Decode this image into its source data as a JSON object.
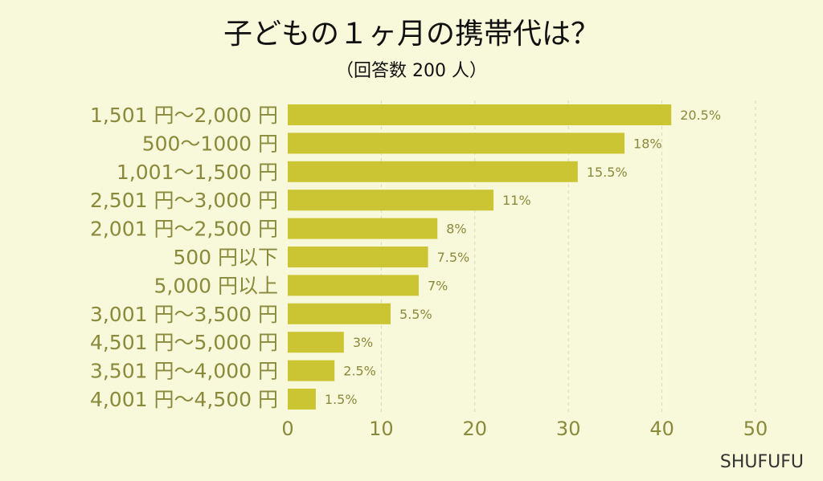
{
  "chart_data": {
    "type": "bar",
    "orientation": "horizontal",
    "title": "子どもの１ヶ月の携帯代は？",
    "subtitle": "（回答数 200 人）",
    "categories": [
      "1,501 円～2,000 円",
      "500～1000 円",
      "1,001～1,500 円",
      "2,501 円～3,000 円",
      "2,001 円～2,500 円",
      "500 円以下",
      "5,000 円以上",
      "3,001 円～3,500 円",
      "4,501 円～5,000 円",
      "3,501 円～4,000 円",
      "4,001 円～4,500 円"
    ],
    "values": [
      20.5,
      18,
      15.5,
      11,
      8,
      7.5,
      7,
      5.5,
      3,
      2.5,
      1.5
    ],
    "value_labels": [
      "20.5%",
      "18%",
      "15.5%",
      "11%",
      "8%",
      "7.5%",
      "7%",
      "5.5%",
      "3%",
      "2.5%",
      "1.5%"
    ],
    "value_scale": 2,
    "xlim": [
      0,
      50
    ],
    "xticks": [
      0,
      10,
      20,
      30,
      40,
      50
    ],
    "grid": "vertical dashed",
    "legend": "none",
    "colors": {
      "background": "#f8f8da",
      "bar": "#cbc533",
      "category_text": "#8a8a3c",
      "value_text": "#8a8a3c",
      "axis_text": "#8a8a3c",
      "title_text": "#111111",
      "grid": "#d9d9c0"
    }
  },
  "watermark": "SHUFUFU"
}
